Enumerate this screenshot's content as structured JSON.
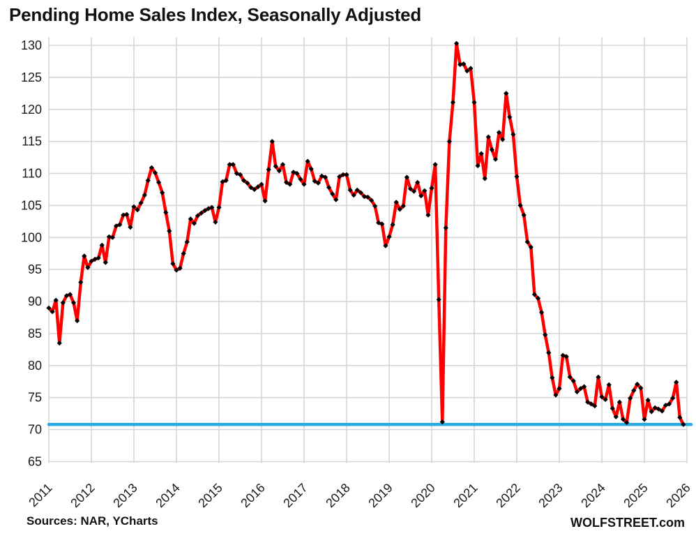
{
  "title": "Pending Home Sales Index, Seasonally Adjusted",
  "footer": {
    "sources": "Sources: NAR, YCharts",
    "brand": "WOLFSTREET.com"
  },
  "colors": {
    "series_line": "#FF0000",
    "marker": "#000000",
    "reference_line": "#29ABE2",
    "gridline": "#D6D6D6",
    "text": "#1a1a1a"
  },
  "chart_data": {
    "type": "line",
    "title": "Pending Home Sales Index, Seasonally Adjusted",
    "xlabel": "",
    "ylabel": "",
    "ylim": [
      65,
      130
    ],
    "y_ticks": [
      65,
      70,
      75,
      80,
      85,
      90,
      95,
      100,
      105,
      110,
      115,
      120,
      125,
      130
    ],
    "x_tick_labels": [
      "2011",
      "2012",
      "2013",
      "2014",
      "2015",
      "2016",
      "2017",
      "2018",
      "2019",
      "2020",
      "2021",
      "2022",
      "2023",
      "2024",
      "2025",
      "2026"
    ],
    "grid": true,
    "legend": "none",
    "frequency": "monthly",
    "start": "2011-01",
    "end": "2025-12",
    "reference_line": {
      "value": 70.8,
      "color": "#29ABE2"
    },
    "series": [
      {
        "name": "Pending Home Sales Index (seasonally adjusted)",
        "color": "#FF0000",
        "marker": "diamond",
        "marker_color": "#000000",
        "values": [
          89.0,
          88.4,
          90.2,
          83.5,
          89.8,
          90.9,
          91.1,
          89.8,
          87.0,
          93.0,
          97.1,
          95.3,
          96.3,
          96.6,
          96.8,
          98.8,
          96.1,
          100.1,
          100.0,
          101.8,
          102.0,
          103.5,
          103.6,
          101.6,
          104.8,
          104.3,
          105.4,
          106.6,
          108.9,
          110.9,
          110.1,
          108.6,
          107.0,
          103.9,
          101.0,
          95.9,
          94.9,
          95.2,
          97.5,
          99.3,
          102.9,
          102.2,
          103.4,
          103.8,
          104.2,
          104.5,
          104.7,
          102.4,
          104.7,
          108.7,
          108.9,
          111.4,
          111.4,
          110.0,
          109.8,
          108.9,
          108.5,
          107.8,
          107.5,
          107.9,
          108.3,
          105.7,
          110.6,
          115.0,
          111.1,
          110.4,
          111.4,
          108.6,
          108.3,
          110.2,
          110.0,
          109.1,
          108.3,
          111.9,
          110.7,
          108.8,
          108.5,
          109.6,
          109.4,
          107.8,
          106.8,
          105.9,
          109.5,
          109.8,
          109.8,
          107.4,
          106.6,
          107.4,
          107.0,
          106.4,
          106.3,
          105.8,
          104.9,
          102.3,
          102.1,
          98.7,
          100.1,
          102.0,
          105.5,
          104.4,
          104.9,
          109.4,
          107.6,
          107.2,
          108.6,
          106.5,
          107.3,
          103.5,
          107.7,
          111.4,
          90.3,
          71.2,
          101.5,
          115.0,
          121.1,
          130.3,
          127.0,
          127.1,
          126.0,
          126.4,
          121.1,
          111.2,
          113.1,
          109.2,
          115.7,
          113.7,
          112.2,
          116.4,
          115.3,
          122.5,
          118.8,
          116.1,
          109.5,
          105.0,
          103.5,
          99.3,
          98.5,
          91.1,
          90.5,
          88.3,
          84.8,
          82.0,
          78.1,
          75.4,
          76.4,
          81.6,
          81.4,
          78.2,
          77.6,
          75.9,
          76.4,
          76.7,
          74.3,
          74.0,
          73.7,
          78.2,
          75.1,
          74.7,
          77.0,
          73.3,
          72.0,
          74.3,
          71.6,
          71.1,
          74.9,
          76.1,
          77.1,
          76.5,
          71.6,
          74.6,
          72.8,
          73.4,
          73.2,
          72.9,
          73.8,
          74.0,
          74.9,
          77.4,
          71.9,
          70.8
        ]
      }
    ]
  }
}
